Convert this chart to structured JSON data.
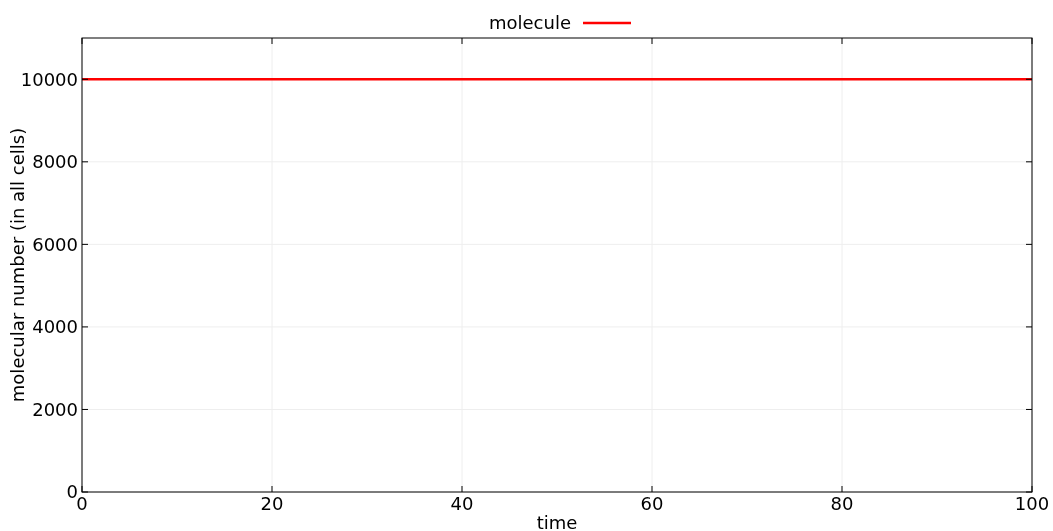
{
  "chart_data": {
    "type": "line",
    "xlabel": "time",
    "ylabel": "molecular number (in all cells)",
    "x": [
      0,
      100
    ],
    "series": [
      {
        "name": "molecule",
        "color": "#ff0000",
        "values": [
          10000,
          10000
        ]
      }
    ],
    "xlim": [
      0,
      100
    ],
    "xticks": [
      0,
      20,
      40,
      60,
      80,
      100
    ],
    "ylim": [
      0,
      11000
    ],
    "yticks": [
      0,
      2000,
      4000,
      6000,
      8000,
      10000
    ],
    "grid": true,
    "legend": "top",
    "marker": "none",
    "line_style": "solid"
  }
}
